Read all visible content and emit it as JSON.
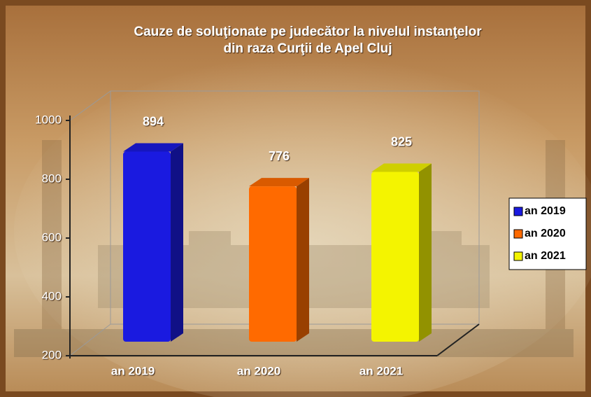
{
  "chart_data": {
    "type": "bar",
    "title": [
      "Cauze de soluţionate  pe judecător la nivelul instanţelor",
      "din raza Curţii de Apel Cluj"
    ],
    "categories": [
      "an 2019",
      "an 2020",
      "an 2021"
    ],
    "values": [
      894,
      776,
      825
    ],
    "colors": [
      "#1a1ae0",
      "#ff6a00",
      "#f4f400"
    ],
    "ylim": [
      200,
      1000
    ],
    "yticks": [
      200,
      400,
      600,
      800,
      1000
    ],
    "legend": "right"
  }
}
